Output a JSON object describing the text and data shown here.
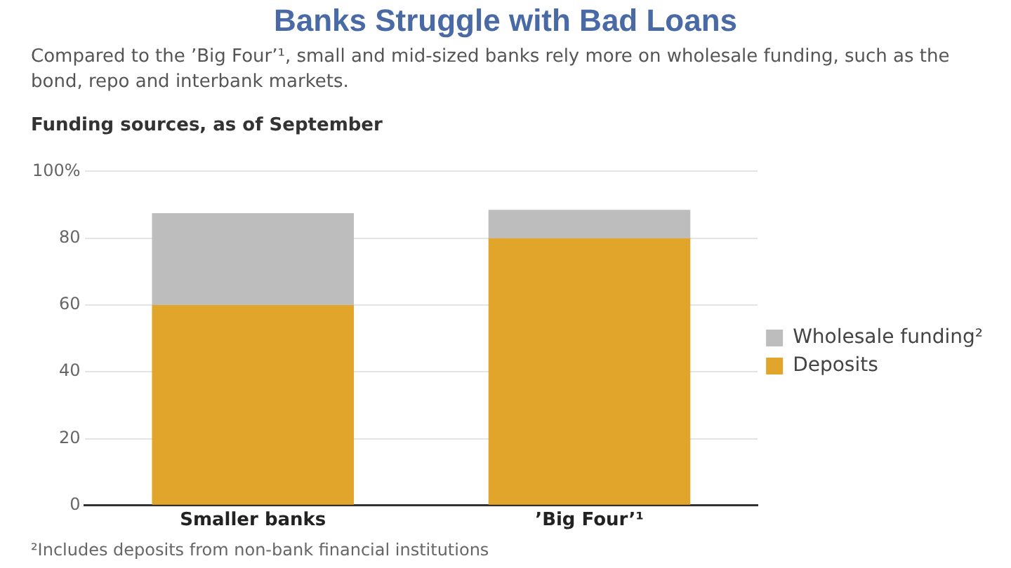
{
  "chart_data": {
    "type": "bar",
    "title": "Banks Struggle with Bad Loans",
    "subtitle": "Compared to the ’Big Four’¹, small and mid-sized banks rely more on wholesale funding, such as the bond, repo and interbank markets.",
    "ylabel": "Funding sources, as of September",
    "categories": [
      "Smaller banks",
      "’Big Four’¹"
    ],
    "series": [
      {
        "name": "Deposits",
        "color": "#e0a52a",
        "values": [
          60,
          80
        ]
      },
      {
        "name": "Wholesale funding²",
        "color": "#bdbdbd",
        "values": [
          27.5,
          8.5
        ]
      }
    ],
    "stacked": true,
    "ylim": [
      0,
      100
    ],
    "yticks": [
      0,
      20,
      40,
      60,
      80,
      {
        "value": 100,
        "label": "100%"
      }
    ],
    "grid": "y",
    "legend": "right",
    "annotations": [
      "²Includes deposits from non-bank financial institutions"
    ]
  }
}
